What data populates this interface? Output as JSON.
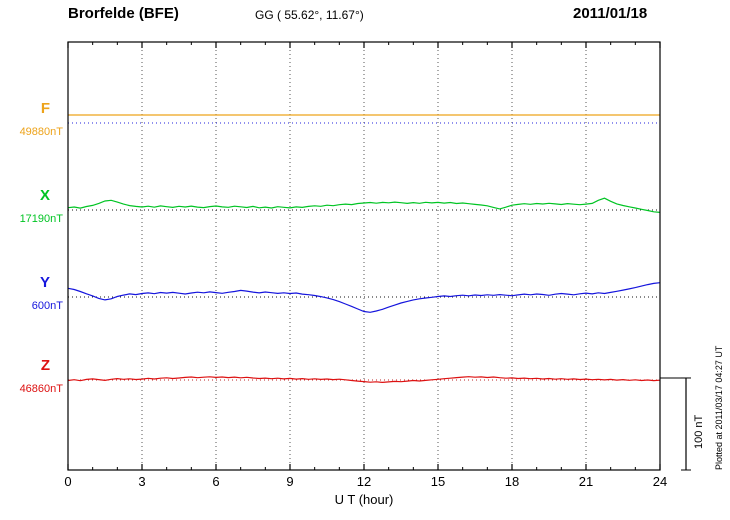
{
  "header": {
    "station": "Brorfelde (BFE)",
    "coordinates": "GG ( 55.62°,  11.67°)",
    "date": "2011/01/18"
  },
  "footer": {
    "plotted_at": "Plotted at 2011/03/17 04:27 UT"
  },
  "chart_data": {
    "type": "line",
    "title": "Brorfelde (BFE) magnetogram 2011/01/18",
    "xlabel": "U T (hour)",
    "ylabel": "nT",
    "xlim": [
      0,
      24
    ],
    "x_ticks": [
      0,
      3,
      6,
      9,
      12,
      15,
      18,
      21,
      24
    ],
    "x_minor_tick_step": 1,
    "grid": "dotted-vertical",
    "scale_bar": {
      "label": "100 nT",
      "nT": 100,
      "height_fraction": 0.215
    },
    "series": [
      {
        "name": "F",
        "baseline_label": "49880nT",
        "color": "#eda31b",
        "baseline_color": "#2222dd",
        "baseline_frac": 0.1893,
        "x": [
          0,
          24
        ],
        "values": [
          8.7,
          8.7
        ]
      },
      {
        "name": "X",
        "baseline_label": "17190nT",
        "color": "#00c423",
        "baseline_color": "#111111",
        "baseline_frac": 0.3925,
        "x_step": 0.25,
        "values": [
          2.5,
          3.2,
          2.1,
          3.8,
          5.0,
          7.2,
          9.8,
          10.5,
          8.6,
          6.4,
          4.8,
          3.9,
          3.2,
          4.1,
          3.0,
          4.4,
          3.6,
          2.8,
          4.0,
          3.3,
          4.2,
          3.1,
          2.6,
          3.7,
          4.3,
          3.4,
          2.9,
          4.1,
          3.5,
          2.7,
          3.9,
          2.4,
          3.1,
          2.2,
          3.6,
          2.9,
          2.3,
          3.4,
          2.8,
          3.9,
          4.6,
          4.0,
          5.2,
          4.7,
          5.8,
          6.4,
          5.9,
          7.0,
          7.6,
          8.1,
          7.4,
          8.3,
          7.8,
          8.6,
          7.9,
          7.2,
          8.0,
          7.3,
          8.4,
          7.7,
          8.2,
          7.5,
          8.1,
          7.0,
          7.6,
          6.8,
          6.1,
          5.4,
          4.6,
          2.8,
          1.2,
          3.0,
          5.2,
          6.1,
          6.8,
          6.2,
          7.1,
          6.5,
          7.3,
          6.6,
          6.0,
          6.9,
          6.3,
          5.7,
          6.4,
          7.2,
          10.5,
          12.8,
          9.4,
          6.6,
          4.9,
          3.5,
          2.2,
          0.8,
          -0.6,
          -2.0,
          -2.6
        ]
      },
      {
        "name": "Y",
        "baseline_label": "600nT",
        "color": "#1515dd",
        "baseline_color": "#111111",
        "baseline_frac": 0.5958,
        "x_step": 0.25,
        "values": [
          9.5,
          8.2,
          6.0,
          3.5,
          1.2,
          -1.5,
          -3.2,
          -2.0,
          0.5,
          2.1,
          3.4,
          2.6,
          3.8,
          4.5,
          3.6,
          4.9,
          4.2,
          5.0,
          4.1,
          3.3,
          4.4,
          5.2,
          4.6,
          5.5,
          4.8,
          4.0,
          5.1,
          6.0,
          7.2,
          6.4,
          5.3,
          4.5,
          5.4,
          4.7,
          3.9,
          4.6,
          3.8,
          4.4,
          3.2,
          2.5,
          1.6,
          0.4,
          -1.0,
          -2.8,
          -5.0,
          -7.6,
          -10.2,
          -13.0,
          -15.8,
          -16.6,
          -15.2,
          -13.4,
          -11.0,
          -8.8,
          -6.5,
          -4.8,
          -3.2,
          -2.0,
          -1.1,
          -0.3,
          0.6,
          1.2,
          0.5,
          1.4,
          2.0,
          1.3,
          2.2,
          1.6,
          2.4,
          1.8,
          2.6,
          2.0,
          1.4,
          2.3,
          3.1,
          2.4,
          3.3,
          2.7,
          1.9,
          3.0,
          3.8,
          3.1,
          2.4,
          3.5,
          4.2,
          3.4,
          4.6,
          3.8,
          5.0,
          6.2,
          7.5,
          8.8,
          10.2,
          11.8,
          13.5,
          14.8,
          15.5
        ]
      },
      {
        "name": "Z",
        "baseline_label": "46860nT",
        "color": "#dd1111",
        "baseline_color": "#bb2222",
        "baseline_frac": 0.7897,
        "x_step": 0.25,
        "values": [
          -0.5,
          0.3,
          -0.8,
          0.6,
          1.2,
          0.4,
          -0.4,
          0.8,
          1.5,
          0.7,
          1.3,
          0.5,
          1.0,
          1.8,
          1.1,
          1.9,
          2.4,
          1.6,
          2.2,
          2.8,
          3.2,
          2.5,
          3.0,
          3.5,
          2.8,
          3.3,
          2.6,
          3.1,
          2.4,
          2.9,
          2.2,
          1.6,
          2.1,
          1.4,
          1.9,
          1.2,
          1.7,
          1.0,
          1.5,
          0.8,
          1.3,
          0.6,
          1.1,
          0.4,
          0.9,
          0.2,
          -0.5,
          -1.2,
          -1.8,
          -2.4,
          -2.0,
          -2.6,
          -2.1,
          -1.5,
          -1.9,
          -1.2,
          -0.6,
          -1.1,
          -0.4,
          0.2,
          0.8,
          1.4,
          2.0,
          2.6,
          3.1,
          3.6,
          3.0,
          3.4,
          2.7,
          3.2,
          2.5,
          1.9,
          2.3,
          1.6,
          2.1,
          1.4,
          1.8,
          1.1,
          1.6,
          0.9,
          1.4,
          0.7,
          1.2,
          0.5,
          1.0,
          0.3,
          0.8,
          0.1,
          0.6,
          -0.1,
          0.4,
          -0.3,
          0.2,
          -0.5,
          0.0,
          -0.7,
          -0.2
        ]
      }
    ]
  }
}
